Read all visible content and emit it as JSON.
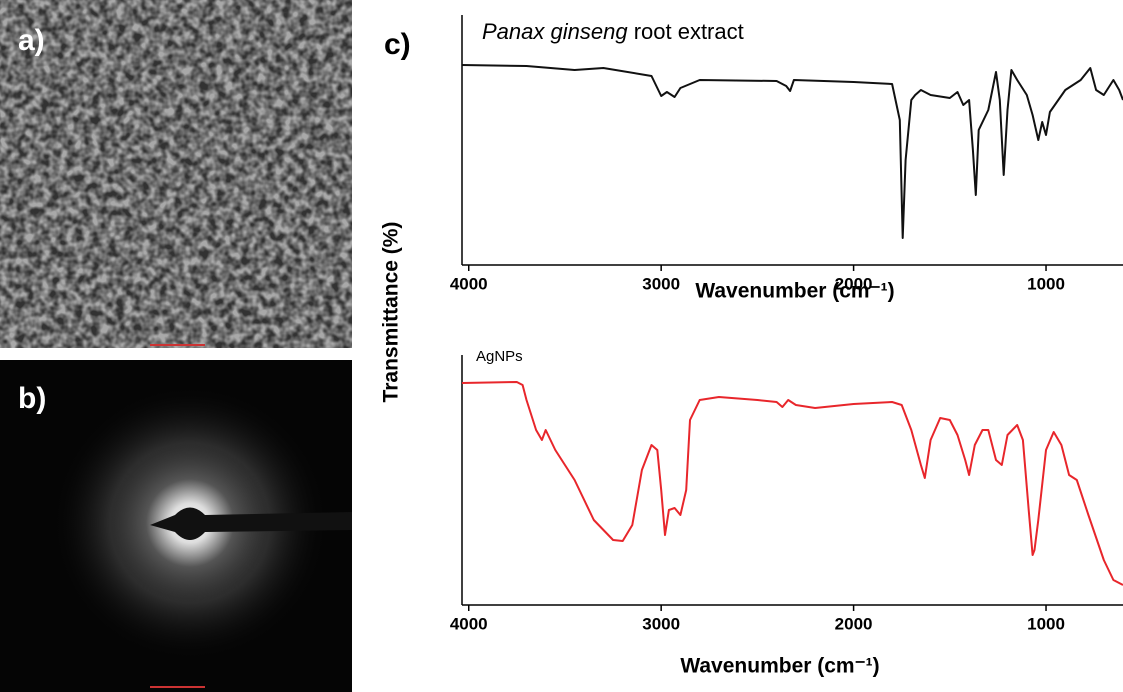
{
  "panel_labels": [
    "a)",
    "b)",
    "c)"
  ],
  "y_label": "Transmittance (%)",
  "chart_data": [
    {
      "type": "line",
      "title": [
        "Panax ginseng",
        "root extract"
      ],
      "x_label": "Wavenumber (cm⁻¹)",
      "color": "#111111",
      "xlim": [
        4035,
        600
      ],
      "ylim": [
        0,
        100
      ],
      "xticks": [
        4000,
        3000,
        2000,
        1000
      ],
      "x": [
        4035,
        3700,
        3450,
        3300,
        3050,
        3000,
        2970,
        2930,
        2900,
        2800,
        2400,
        2350,
        2330,
        2310,
        2000,
        1800,
        1760,
        1745,
        1730,
        1700,
        1680,
        1650,
        1600,
        1500,
        1460,
        1430,
        1400,
        1380,
        1365,
        1350,
        1300,
        1260,
        1240,
        1220,
        1200,
        1180,
        1150,
        1100,
        1070,
        1040,
        1020,
        1000,
        980,
        900,
        820,
        770,
        740,
        700,
        650,
        620,
        600
      ],
      "values": [
        80,
        79.6,
        78,
        78.8,
        75.6,
        67.6,
        69.2,
        67.2,
        70.8,
        74,
        73.6,
        71.6,
        69.6,
        74,
        73.2,
        72.4,
        58,
        10.8,
        42,
        66,
        68,
        70,
        68,
        66.8,
        69.2,
        64,
        66,
        46,
        28,
        54,
        62,
        77.2,
        66,
        36,
        62,
        78,
        74,
        68,
        60,
        50,
        57.2,
        52,
        61.2,
        70,
        74,
        78.8,
        70,
        68,
        74,
        70,
        66
      ]
    },
    {
      "type": "line",
      "title": [
        "AgNPs"
      ],
      "x_label": "Wavenumber (cm⁻¹)",
      "color": "#e8262b",
      "xlim": [
        4035,
        600
      ],
      "ylim": [
        0,
        100
      ],
      "xticks": [
        4000,
        3000,
        2000,
        1000
      ],
      "x": [
        4035,
        3750,
        3720,
        3700,
        3650,
        3620,
        3600,
        3550,
        3450,
        3350,
        3250,
        3200,
        3150,
        3100,
        3050,
        3020,
        3000,
        2980,
        2960,
        2930,
        2900,
        2870,
        2850,
        2800,
        2700,
        2500,
        2400,
        2370,
        2340,
        2300,
        2200,
        2000,
        1800,
        1750,
        1700,
        1650,
        1630,
        1600,
        1550,
        1500,
        1460,
        1420,
        1400,
        1370,
        1330,
        1300,
        1260,
        1230,
        1200,
        1150,
        1120,
        1090,
        1070,
        1060,
        1040,
        1000,
        960,
        920,
        880,
        840,
        780,
        700,
        650,
        600
      ],
      "values": [
        88.8,
        89.2,
        88,
        82,
        70,
        66,
        70,
        62,
        50,
        34,
        26,
        25.6,
        32,
        54,
        64,
        62,
        46,
        28,
        38,
        38.8,
        36,
        46,
        74,
        82,
        83.2,
        82,
        81.2,
        79.2,
        82,
        80,
        78.8,
        80.4,
        81.2,
        80,
        70,
        56,
        50.8,
        66,
        74.8,
        74,
        68,
        58,
        52,
        64,
        70,
        70,
        58,
        56,
        68,
        72,
        66,
        38,
        20,
        22,
        34,
        62,
        69.2,
        64,
        52,
        50,
        36,
        18,
        10,
        8
      ]
    }
  ]
}
